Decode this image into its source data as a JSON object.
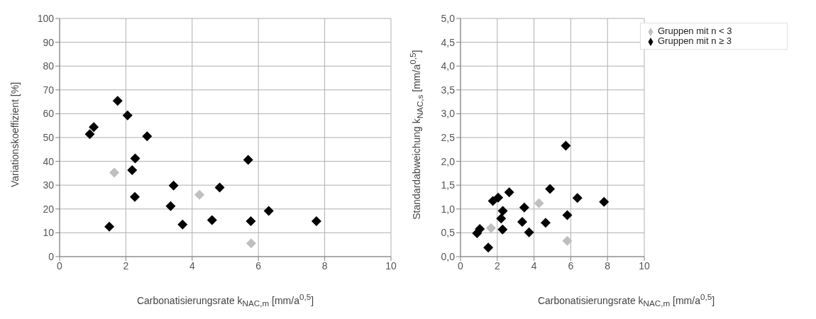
{
  "chart_data": [
    {
      "type": "scatter",
      "xlabel": "Carbonatisierungsrate k$_{NAC,m}$ [mm/a$^{0,5}$]",
      "ylabel": "Variationskoeffizient [%]",
      "xlim": [
        0,
        10
      ],
      "xticks": [
        0,
        2,
        4,
        6,
        8,
        10
      ],
      "ylim": [
        0,
        100
      ],
      "yticks": [
        0,
        10,
        20,
        30,
        40,
        50,
        60,
        70,
        80,
        90,
        100
      ],
      "grid": true,
      "legend": false,
      "marker": "diamond",
      "series": [
        {
          "color": "#bfbfbf",
          "x": [
            1.65,
            4.22,
            5.78
          ],
          "values": [
            35.3,
            26.0,
            5.6
          ]
        },
        {
          "color": "#000000",
          "x": [
            0.91,
            1.03,
            1.75,
            2.05,
            2.64,
            2.28,
            2.19,
            2.27,
            1.5,
            3.44,
            3.35,
            3.71,
            4.6,
            4.83,
            5.69,
            5.77,
            6.31,
            7.75
          ],
          "values": [
            51.4,
            54.4,
            65.4,
            59.3,
            50.5,
            41.2,
            36.3,
            25.1,
            12.6,
            29.8,
            21.2,
            13.5,
            15.3,
            29.0,
            40.6,
            14.9,
            19.2,
            14.9
          ]
        }
      ]
    },
    {
      "type": "scatter",
      "xlabel": "Carbonatisierungsrate k$_{NAC,m}$ [mm/a$^{0,5}$]",
      "ylabel": "Standardabweichung k$_{NAC,s}$ [mm/a$^{0,5}$]",
      "xlim": [
        0,
        10
      ],
      "xticks": [
        0,
        2,
        4,
        6,
        8,
        10
      ],
      "ylim": [
        0,
        5
      ],
      "yticks": [
        {
          "value": 0,
          "label": "0,0"
        },
        {
          "value": 0.5,
          "label": "0,5"
        },
        {
          "value": 1,
          "label": "1,0"
        },
        {
          "value": 1.5,
          "label": "1,5"
        },
        {
          "value": 2,
          "label": "2,0"
        },
        {
          "value": 2.5,
          "label": "2,5"
        },
        {
          "value": 3,
          "label": "3,0"
        },
        {
          "value": 3.5,
          "label": "3,5"
        },
        {
          "value": 4,
          "label": "4,0"
        },
        {
          "value": 4.5,
          "label": "4,5"
        },
        {
          "value": 5,
          "label": "5,0"
        }
      ],
      "grid": true,
      "legend": "top right",
      "marker": "diamond",
      "series": [
        {
          "name": "Gruppen mit n < 3",
          "color": "#bfbfbf",
          "x": [
            1.66,
            4.27,
            5.81
          ],
          "values": [
            0.6,
            1.12,
            0.33
          ]
        },
        {
          "name": "Gruppen mit n ≥ 3",
          "color": "#000000",
          "x": [
            0.9,
            1.05,
            1.76,
            2.05,
            2.65,
            2.3,
            2.21,
            2.29,
            1.51,
            3.47,
            3.36,
            3.73,
            4.63,
            4.87,
            5.73,
            5.81,
            6.36,
            7.81
          ],
          "values": [
            0.49,
            0.58,
            1.17,
            1.24,
            1.35,
            0.96,
            0.8,
            0.57,
            0.19,
            1.03,
            0.73,
            0.51,
            0.71,
            1.42,
            2.33,
            0.87,
            1.23,
            1.15
          ]
        }
      ]
    }
  ]
}
